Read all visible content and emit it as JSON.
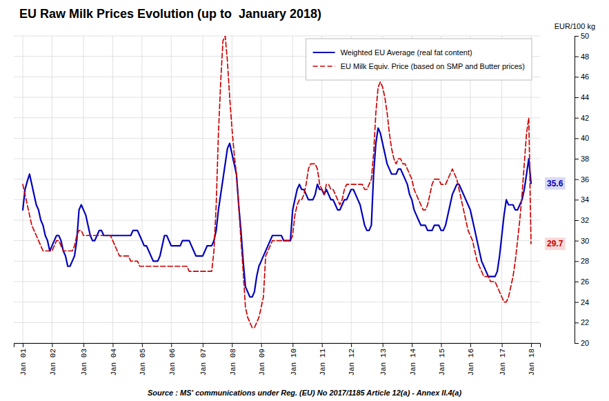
{
  "chart_data": {
    "type": "line",
    "title": "EU Raw Milk Prices Evolution (up to  January 2018)",
    "y_label": "EUR/100 kg",
    "source": "Source : MS' communications under Reg. (EU) No 2017/1185 Article 12(a) - Annex II.4(a)",
    "ylim": [
      20,
      50
    ],
    "yticks": [
      20,
      22,
      24,
      26,
      28,
      30,
      32,
      34,
      36,
      38,
      40,
      42,
      44,
      46,
      48,
      50
    ],
    "grid": true,
    "legend": "upper right",
    "categories": [
      "Jan 01",
      null,
      null,
      null,
      null,
      null,
      null,
      null,
      null,
      null,
      null,
      null,
      null,
      "Jan 02",
      null,
      null,
      null,
      null,
      null,
      null,
      null,
      null,
      null,
      null,
      null,
      null,
      null,
      "Jan 03",
      null,
      null,
      null,
      null,
      null,
      null,
      null,
      null,
      null,
      null,
      null,
      null,
      "Jan 04",
      null,
      null,
      null,
      null,
      null,
      null,
      null,
      null,
      null,
      null,
      null,
      null,
      "Jan 05",
      null,
      null,
      null,
      null,
      null,
      null,
      null,
      null,
      null,
      null,
      null,
      null,
      "Jan 06",
      null,
      null,
      null,
      null,
      null,
      null,
      null,
      null,
      null,
      null,
      null,
      null,
      null,
      "Jan 07",
      null,
      null,
      null,
      null,
      null,
      null,
      null,
      null,
      null,
      null,
      null,
      null,
      "Jan 08",
      null,
      null,
      null,
      null,
      null,
      null,
      null,
      null,
      null,
      null,
      null,
      null,
      "Jan 09",
      null,
      null,
      null,
      null,
      null,
      null,
      null,
      null,
      null,
      null,
      null,
      null,
      null,
      "Jan 10",
      null,
      null,
      null,
      null,
      null,
      null,
      null,
      null,
      null,
      null,
      null,
      null,
      "Jan 11",
      null,
      null,
      null,
      null,
      null,
      null,
      null,
      null,
      null,
      null,
      null,
      null,
      "Jan 12",
      null,
      null,
      null,
      null,
      null,
      null,
      null,
      null,
      null,
      null,
      null,
      null,
      null,
      "Jan 13",
      null,
      null,
      null,
      null,
      null,
      null,
      null,
      null,
      null,
      null,
      null,
      null,
      "Jan 14",
      null,
      null,
      null,
      null,
      null,
      null,
      null,
      null,
      null,
      null,
      null,
      null,
      "Jan 15",
      null,
      null,
      null,
      null,
      null,
      null,
      null,
      null,
      null,
      null,
      null,
      null,
      "Jan 16",
      null,
      null,
      null,
      null,
      null,
      null,
      null,
      null,
      null,
      null,
      null,
      null,
      null,
      "Jan 17",
      null,
      null,
      null,
      null,
      null,
      null,
      null,
      null,
      null,
      null,
      null,
      null,
      "Jan 18"
    ],
    "series": [
      {
        "name": "Weighted EU Average (real fat content)",
        "color": "#0000BB",
        "line_style": "solid",
        "values": [
          33.0,
          35.0,
          35.8,
          36.5,
          35.5,
          34.5,
          33.5,
          33.0,
          32.0,
          31.5,
          30.5,
          30.0,
          29.0,
          29.5,
          30.0,
          30.5,
          30.5,
          30.0,
          29.0,
          28.5,
          27.5,
          27.5,
          28.0,
          28.5,
          30.0,
          33.0,
          33.5,
          33.0,
          32.5,
          31.5,
          30.5,
          30.0,
          30.0,
          30.5,
          31.0,
          31.0,
          30.5,
          30.5,
          30.5,
          30.5,
          30.5,
          30.5,
          30.5,
          30.5,
          30.5,
          30.5,
          30.5,
          30.5,
          30.5,
          31.0,
          31.0,
          31.0,
          30.5,
          30.0,
          29.5,
          29.5,
          29.0,
          28.5,
          28.0,
          28.0,
          28.0,
          28.5,
          29.5,
          30.5,
          30.5,
          30.0,
          29.5,
          29.5,
          29.5,
          29.5,
          29.5,
          30.0,
          30.0,
          30.0,
          30.0,
          29.5,
          29.0,
          28.5,
          28.5,
          28.5,
          28.5,
          29.0,
          29.5,
          29.5,
          29.5,
          30.0,
          31.0,
          33.0,
          34.5,
          36.0,
          37.5,
          39.0,
          39.5,
          38.5,
          37.5,
          36.5,
          33.5,
          31.0,
          28.0,
          25.5,
          25.0,
          24.5,
          24.5,
          25.0,
          26.5,
          27.5,
          28.0,
          28.5,
          29.0,
          29.5,
          30.0,
          30.5,
          30.5,
          30.5,
          30.5,
          30.5,
          30.0,
          30.0,
          30.0,
          30.0,
          33.0,
          34.0,
          35.0,
          35.5,
          35.0,
          35.0,
          34.5,
          34.0,
          34.0,
          34.0,
          34.5,
          35.5,
          35.0,
          35.0,
          34.5,
          35.0,
          34.5,
          34.0,
          34.0,
          33.5,
          33.0,
          33.0,
          33.5,
          34.0,
          34.0,
          34.5,
          35.0,
          35.0,
          34.5,
          34.0,
          33.5,
          32.5,
          31.5,
          31.0,
          31.0,
          31.5,
          36.5,
          39.5,
          41.0,
          40.5,
          39.5,
          38.5,
          37.5,
          37.0,
          36.5,
          36.5,
          36.5,
          37.0,
          37.0,
          36.5,
          36.0,
          35.5,
          34.5,
          34.0,
          33.0,
          32.5,
          32.0,
          31.5,
          31.5,
          31.5,
          31.0,
          31.0,
          31.0,
          31.5,
          31.5,
          31.5,
          31.0,
          31.0,
          31.5,
          32.5,
          33.5,
          34.5,
          35.0,
          35.5,
          35.5,
          35.0,
          34.5,
          34.0,
          33.5,
          33.0,
          32.0,
          31.0,
          30.0,
          29.0,
          28.0,
          27.5,
          27.0,
          26.5,
          26.5,
          26.5,
          26.5,
          27.0,
          28.5,
          30.5,
          32.5,
          34.0,
          33.5,
          33.5,
          33.5,
          33.0,
          33.0,
          33.5,
          34.0,
          35.0,
          36.5,
          38.0,
          35.6
        ]
      },
      {
        "name": "EU Milk Equiv. Price (based on SMP and Butter prices)",
        "color": "#CC0000",
        "line_style": "dashed",
        "values": [
          35.5,
          34.5,
          33.5,
          32.5,
          31.5,
          31.0,
          30.5,
          30.0,
          29.5,
          29.0,
          29.0,
          29.0,
          29.0,
          29.0,
          29.5,
          30.0,
          30.0,
          29.5,
          29.0,
          29.0,
          29.0,
          29.0,
          29.0,
          29.5,
          30.5,
          31.0,
          31.0,
          30.5,
          30.5,
          30.5,
          30.5,
          30.5,
          30.5,
          30.5,
          30.5,
          30.5,
          30.5,
          30.5,
          30.5,
          30.5,
          30.0,
          29.5,
          29.0,
          28.5,
          28.5,
          28.5,
          28.5,
          28.5,
          28.0,
          28.0,
          28.0,
          28.0,
          27.5,
          27.5,
          27.5,
          27.5,
          27.5,
          27.5,
          27.5,
          27.5,
          27.5,
          27.5,
          27.5,
          27.5,
          27.5,
          27.5,
          27.5,
          27.5,
          27.5,
          27.5,
          27.5,
          27.5,
          27.5,
          27.5,
          27.0,
          27.0,
          27.0,
          27.0,
          27.0,
          27.0,
          27.0,
          27.0,
          27.0,
          27.0,
          27.0,
          29.0,
          33.5,
          40.5,
          45.5,
          49.5,
          50.0,
          47.5,
          44.0,
          41.0,
          38.5,
          36.5,
          33.5,
          30.0,
          27.0,
          23.5,
          22.5,
          22.0,
          21.5,
          21.5,
          22.0,
          22.5,
          23.5,
          24.5,
          28.5,
          29.0,
          29.5,
          30.0,
          30.0,
          30.0,
          30.0,
          30.0,
          30.0,
          30.0,
          30.0,
          30.0,
          30.5,
          32.5,
          33.5,
          34.0,
          34.0,
          34.5,
          35.5,
          37.0,
          37.5,
          37.5,
          37.5,
          37.0,
          35.5,
          35.0,
          34.5,
          35.5,
          35.5,
          35.0,
          35.0,
          34.5,
          34.0,
          33.5,
          34.0,
          35.0,
          35.5,
          35.5,
          35.5,
          35.5,
          35.5,
          35.5,
          35.5,
          35.5,
          35.0,
          35.0,
          35.5,
          36.0,
          38.5,
          42.5,
          45.0,
          45.5,
          45.0,
          44.0,
          42.5,
          40.5,
          39.0,
          38.0,
          37.5,
          38.0,
          38.0,
          37.5,
          37.5,
          37.0,
          36.5,
          36.0,
          35.0,
          34.5,
          34.0,
          33.5,
          33.0,
          33.0,
          33.5,
          34.5,
          35.5,
          36.0,
          36.0,
          36.0,
          35.5,
          35.5,
          35.5,
          36.0,
          36.5,
          37.0,
          36.5,
          36.0,
          35.0,
          34.0,
          33.0,
          32.0,
          31.0,
          30.5,
          30.0,
          29.0,
          28.0,
          27.5,
          27.0,
          26.5,
          26.5,
          26.5,
          26.0,
          26.0,
          26.0,
          25.5,
          25.0,
          24.5,
          24.0,
          24.0,
          24.5,
          25.5,
          26.5,
          28.0,
          30.0,
          32.0,
          34.5,
          37.5,
          40.5,
          42.0,
          29.7
        ]
      }
    ],
    "annotations": [
      {
        "text": "35.6",
        "y": 35.6,
        "color": "#0000BB"
      },
      {
        "text": "29.7",
        "y": 29.7,
        "color": "#CC0000"
      }
    ]
  }
}
